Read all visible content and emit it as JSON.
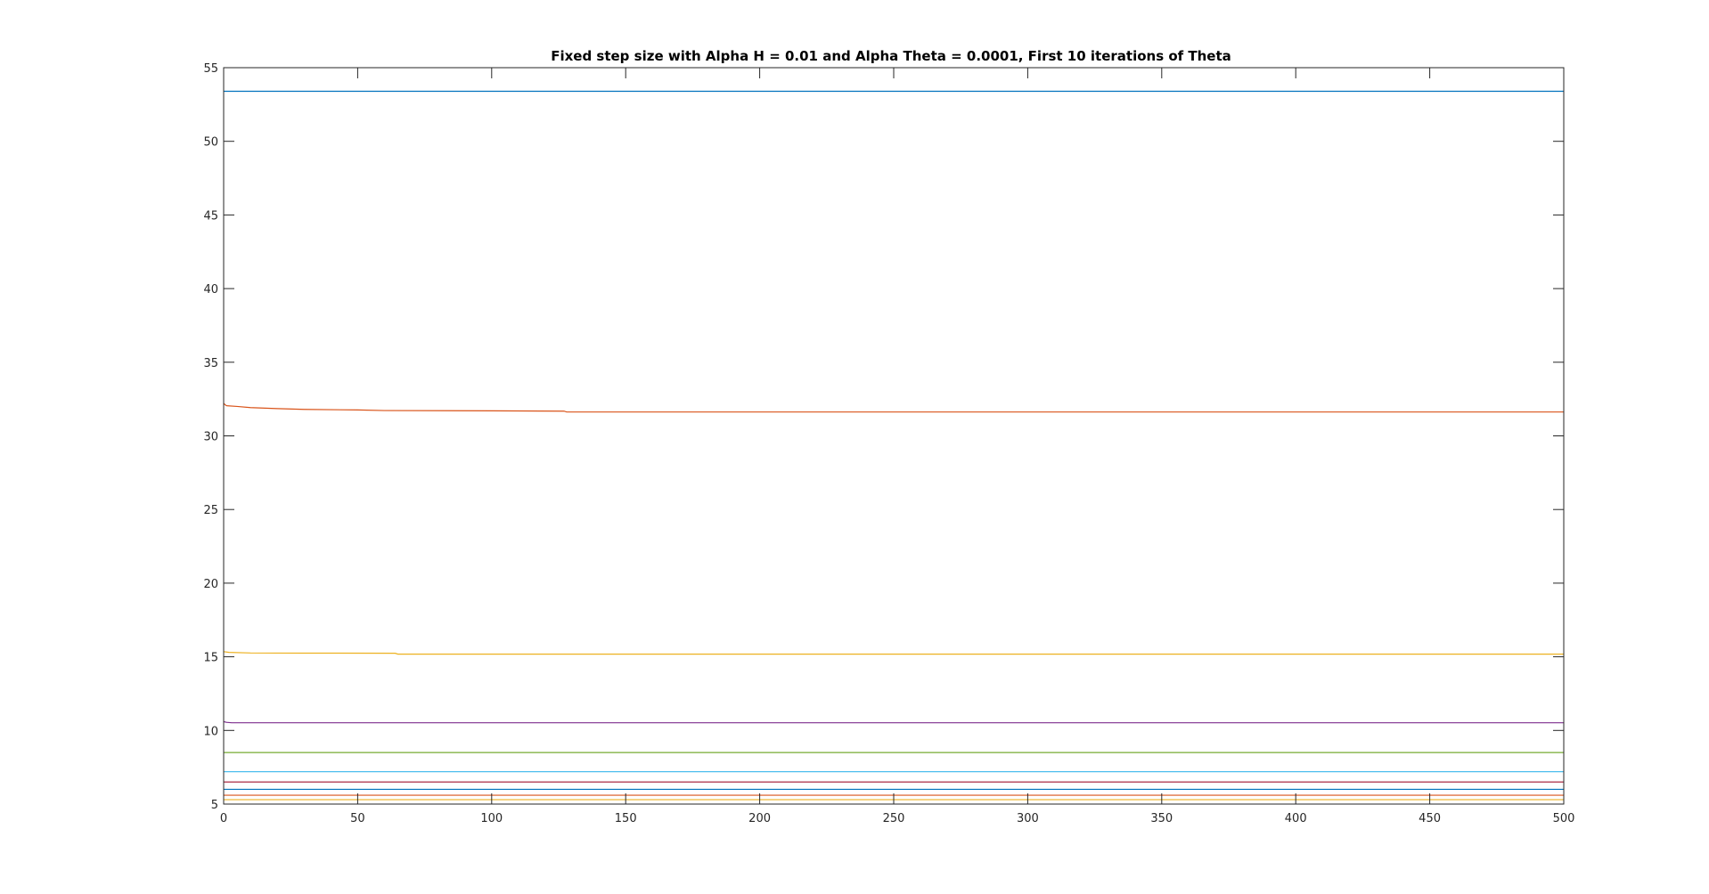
{
  "chart_data": {
    "type": "line",
    "title": "Fixed step size with Alpha H = 0.01 and Alpha Theta = 0.0001, First 10 iterations of Theta",
    "xlabel": "",
    "ylabel": "",
    "xlim": [
      0,
      500
    ],
    "ylim": [
      5,
      55
    ],
    "xticks": [
      0,
      50,
      100,
      150,
      200,
      250,
      300,
      350,
      400,
      450,
      500
    ],
    "yticks": [
      5,
      10,
      15,
      20,
      25,
      30,
      35,
      40,
      45,
      50,
      55
    ],
    "grid": false,
    "legend": "none",
    "series": [
      {
        "color": "#0072BD",
        "x": [
          0,
          500
        ],
        "y": [
          53.4,
          53.4
        ]
      },
      {
        "color": "#D95319",
        "x": [
          0,
          1,
          5,
          10,
          20,
          30,
          50,
          60,
          100,
          127,
          128,
          200,
          300,
          400,
          500
        ],
        "y": [
          32.2,
          32.05,
          32.0,
          31.92,
          31.85,
          31.8,
          31.76,
          31.72,
          31.7,
          31.68,
          31.62,
          31.62,
          31.62,
          31.62,
          31.62
        ]
      },
      {
        "color": "#EDB120",
        "x": [
          0,
          2,
          10,
          30,
          64,
          65,
          200,
          500
        ],
        "y": [
          15.35,
          15.3,
          15.26,
          15.25,
          15.24,
          15.18,
          15.18,
          15.18
        ]
      },
      {
        "color": "#7E2F8E",
        "x": [
          0,
          1,
          3,
          10,
          500
        ],
        "y": [
          10.6,
          10.55,
          10.52,
          10.52,
          10.52
        ]
      },
      {
        "color": "#77AC30",
        "x": [
          0,
          500
        ],
        "y": [
          8.5,
          8.5
        ]
      },
      {
        "color": "#4DBEEE",
        "x": [
          0,
          500
        ],
        "y": [
          7.2,
          7.2
        ]
      },
      {
        "color": "#A2142F",
        "x": [
          0,
          500
        ],
        "y": [
          6.5,
          6.5
        ]
      },
      {
        "color": "#0072BD",
        "x": [
          0,
          500
        ],
        "y": [
          6.0,
          6.0
        ]
      },
      {
        "color": "#D95319",
        "x": [
          0,
          500
        ],
        "y": [
          5.6,
          5.6
        ]
      },
      {
        "color": "#EDB120",
        "x": [
          0,
          500
        ],
        "y": [
          5.3,
          5.3
        ]
      }
    ]
  }
}
